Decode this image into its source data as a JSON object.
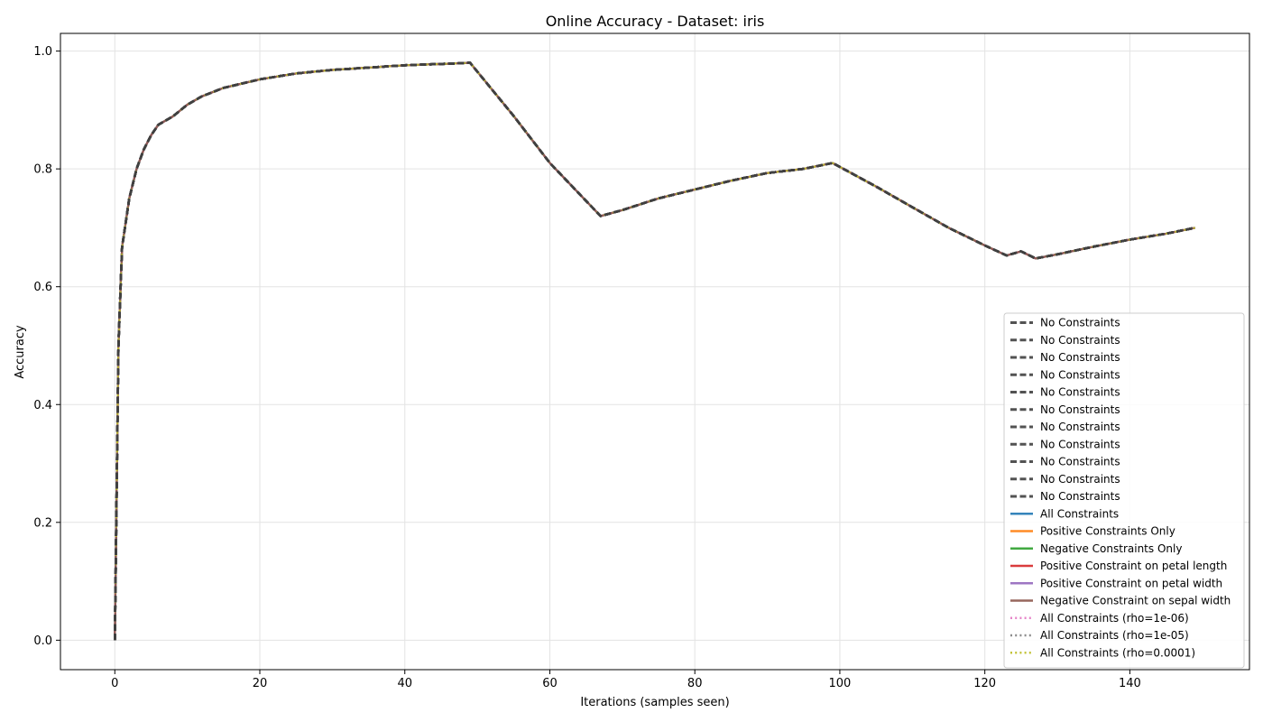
{
  "chart_data": {
    "type": "line",
    "title": "Online Accuracy - Dataset: iris",
    "xlabel": "Iterations (samples seen)",
    "ylabel": "Accuracy",
    "xlim": [
      -7.5,
      156.5
    ],
    "ylim": [
      -0.05,
      1.03
    ],
    "xticks": [
      0,
      20,
      40,
      60,
      80,
      100,
      120,
      140
    ],
    "yticks": [
      0.0,
      0.2,
      0.4,
      0.6,
      0.8,
      1.0
    ],
    "ytick_labels": [
      "0.0",
      "0.2",
      "0.4",
      "0.6",
      "0.8",
      "1.0"
    ],
    "grid": true,
    "legend_position": "lower-right",
    "curve": {
      "x": [
        0,
        0.5,
        1,
        2,
        3,
        4,
        5,
        6,
        8,
        10,
        12,
        15,
        20,
        25,
        30,
        35,
        40,
        45,
        49,
        55,
        60,
        67,
        70,
        75,
        80,
        85,
        90,
        95,
        99,
        105,
        110,
        115,
        120,
        123,
        125,
        127,
        130,
        135,
        140,
        145,
        149
      ],
      "y": [
        0.0,
        0.5,
        0.667,
        0.75,
        0.8,
        0.833,
        0.857,
        0.875,
        0.889,
        0.909,
        0.923,
        0.9375,
        0.952,
        0.962,
        0.968,
        0.972,
        0.976,
        0.978,
        0.98,
        0.89,
        0.81,
        0.72,
        0.73,
        0.75,
        0.765,
        0.78,
        0.793,
        0.8,
        0.81,
        0.77,
        0.735,
        0.7,
        0.67,
        0.653,
        0.66,
        0.648,
        0.655,
        0.668,
        0.68,
        0.69,
        0.7
      ]
    },
    "series": [
      {
        "name": "No Constraints",
        "color": "#404040",
        "dash": "dashed"
      },
      {
        "name": "No Constraints",
        "color": "#404040",
        "dash": "dashed"
      },
      {
        "name": "No Constraints",
        "color": "#404040",
        "dash": "dashed"
      },
      {
        "name": "No Constraints",
        "color": "#404040",
        "dash": "dashed"
      },
      {
        "name": "No Constraints",
        "color": "#404040",
        "dash": "dashed"
      },
      {
        "name": "No Constraints",
        "color": "#404040",
        "dash": "dashed"
      },
      {
        "name": "No Constraints",
        "color": "#404040",
        "dash": "dashed"
      },
      {
        "name": "No Constraints",
        "color": "#404040",
        "dash": "dashed"
      },
      {
        "name": "No Constraints",
        "color": "#404040",
        "dash": "dashed"
      },
      {
        "name": "No Constraints",
        "color": "#404040",
        "dash": "dashed"
      },
      {
        "name": "No Constraints",
        "color": "#404040",
        "dash": "dashed"
      },
      {
        "name": "All Constraints",
        "color": "#1f77b4",
        "dash": "solid"
      },
      {
        "name": "Positive Constraints Only",
        "color": "#ff7f0e",
        "dash": "solid"
      },
      {
        "name": "Negative Constraints Only",
        "color": "#2ca02c",
        "dash": "solid"
      },
      {
        "name": "Positive Constraint on petal length",
        "color": "#d62728",
        "dash": "solid"
      },
      {
        "name": "Positive Constraint on petal width",
        "color": "#9467bd",
        "dash": "solid"
      },
      {
        "name": "Negative Constraint on sepal width",
        "color": "#8c564b",
        "dash": "solid"
      },
      {
        "name": "All Constraints (rho=1e-06)",
        "color": "#e377c2",
        "dash": "dotted"
      },
      {
        "name": "All Constraints (rho=1e-05)",
        "color": "#7f7f7f",
        "dash": "dotted"
      },
      {
        "name": "All Constraints (rho=0.0001)",
        "color": "#bcbd22",
        "dash": "dotted"
      }
    ]
  }
}
